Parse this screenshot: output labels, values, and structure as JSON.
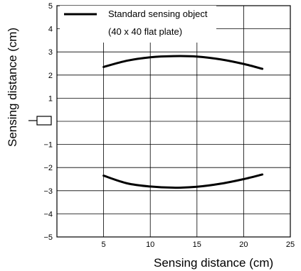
{
  "chart_data": {
    "type": "line",
    "xlabel": "Sensing distance (cm)",
    "ylabel": "Sensing distance (cm)",
    "xlim": [
      0,
      25
    ],
    "ylim": [
      -5,
      5
    ],
    "x_ticks": [
      5,
      10,
      15,
      20,
      25
    ],
    "y_ticks": [
      5,
      4,
      3,
      2,
      1,
      -1,
      -2,
      -3,
      -4,
      -5
    ],
    "grid": true,
    "legend_position": "top-left",
    "legend": {
      "line1": "Standard sensing object",
      "line2": "(40 x 40 flat plate)"
    },
    "sensor_marker": "sensor-icon",
    "series": [
      {
        "name": "Standard sensing object (40 x 40 flat plate)",
        "x": [
          5,
          7.5,
          10,
          12.5,
          15,
          17.5,
          20,
          22
        ],
        "y": [
          2.35,
          2.62,
          2.77,
          2.82,
          2.8,
          2.68,
          2.48,
          2.27
        ]
      },
      {
        "x": [
          5,
          7.5,
          10,
          12.5,
          15,
          17.5,
          20,
          22
        ],
        "y": [
          -2.35,
          -2.68,
          -2.82,
          -2.87,
          -2.83,
          -2.7,
          -2.5,
          -2.3
        ]
      }
    ],
    "line_color": "#000000"
  }
}
